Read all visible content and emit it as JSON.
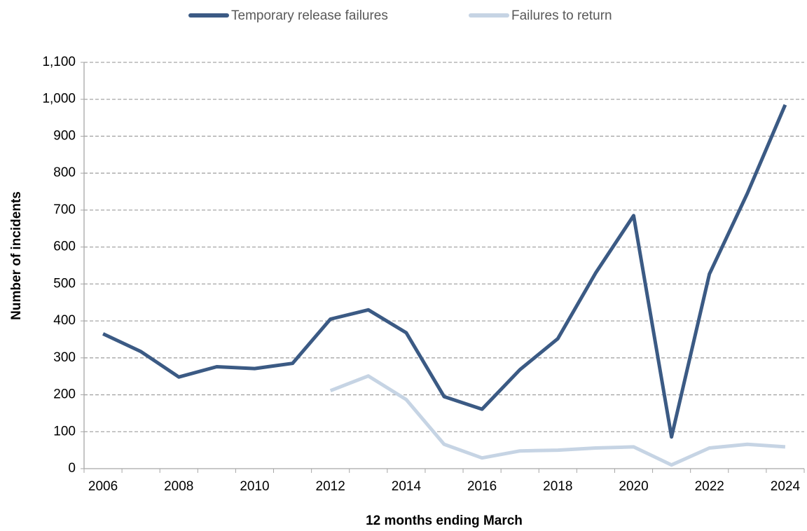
{
  "chart_data": {
    "type": "line",
    "x_label": "12 months ending March",
    "y_label": "Number of incidents",
    "categories": [
      "2006",
      null,
      "2008",
      null,
      "2010",
      null,
      "2012",
      null,
      "2014",
      null,
      "2016",
      null,
      "2018",
      null,
      "2020",
      null,
      "2022",
      null,
      "2024"
    ],
    "series": [
      {
        "name": "Temporary release failures",
        "color": "#3b5a84",
        "values": [
          365,
          317,
          248,
          276,
          271,
          285,
          405,
          430,
          368,
          195,
          161,
          268,
          352,
          530,
          685,
          86,
          527,
          745,
          985
        ]
      },
      {
        "name": "Failures to return",
        "color": "#c6d4e4",
        "values": [
          null,
          null,
          null,
          null,
          null,
          null,
          211,
          251,
          187,
          66,
          29,
          48,
          50,
          56,
          59,
          10,
          56,
          66,
          59
        ]
      }
    ],
    "ylim": [
      0,
      1100
    ],
    "yticks": [
      0,
      100,
      200,
      300,
      400,
      500,
      600,
      700,
      800,
      900,
      {
        "value": 1000,
        "label": "1,000"
      },
      {
        "value": 1100,
        "label": "1,100"
      }
    ],
    "grid": true,
    "legend": "top"
  }
}
